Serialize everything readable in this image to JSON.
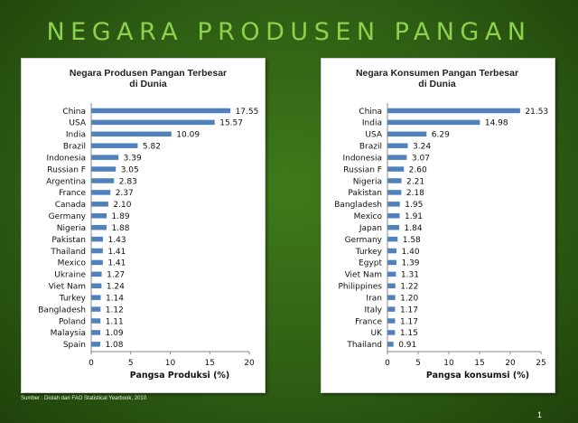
{
  "slide": {
    "title": "NEGARA PRODUSEN PANGAN",
    "source": "Sumber : Diolah dari FAO Statistical Yearbook, 2010",
    "page_number": "1"
  },
  "colors": {
    "background": "#2e5c13",
    "title_text": "#8fd14f",
    "bar": "#4f81bd",
    "panel": "#ffffff"
  },
  "chart_data": [
    {
      "type": "bar",
      "orientation": "horizontal",
      "title": "Negara Produsen  Pangan Terbesar di Dunia",
      "title_lines": [
        "Negara Produsen  Pangan Terbesar",
        "di Dunia"
      ],
      "xlabel": "Pangsa Produksi (%)",
      "ylabel": "",
      "xlim": [
        0,
        20
      ],
      "xticks": [
        "0",
        "5",
        "10",
        "15",
        "20"
      ],
      "grid": false,
      "legend": "none",
      "categories": [
        "China",
        "USA",
        "India",
        "Brazil",
        "Indonesia",
        "Russian F",
        "Argentina",
        "France",
        "Canada",
        "Germany",
        "Nigeria",
        "Pakistan",
        "Thailand",
        "Mexico",
        "Ukraine",
        "Viet Nam",
        "Turkey",
        "Bangladesh",
        "Poland",
        "Malaysia",
        "Spain"
      ],
      "values": [
        17.55,
        15.57,
        10.09,
        5.82,
        3.39,
        3.05,
        2.83,
        2.37,
        2.1,
        1.89,
        1.88,
        1.43,
        1.41,
        1.41,
        1.27,
        1.24,
        1.14,
        1.12,
        1.11,
        1.09,
        1.08
      ],
      "value_labels": [
        "17.55",
        "15.57",
        "10.09",
        "5.82",
        "3.39",
        "3.05",
        "2.83",
        "2.37",
        "2.10",
        "1.89",
        "1.88",
        "1.43",
        "1.41",
        "1.41",
        "1.27",
        "1.24",
        "1.14",
        "1.12",
        "1.11",
        "1.09",
        "1.08"
      ]
    },
    {
      "type": "bar",
      "orientation": "horizontal",
      "title": "Negara Konsumen  Pangan Terbesar di Dunia",
      "title_lines": [
        "Negara Konsumen  Pangan Terbesar",
        "di Dunia"
      ],
      "xlabel": "Pangsa konsumsi (%)",
      "ylabel": "",
      "xlim": [
        0,
        25
      ],
      "xticks": [
        "0",
        "5",
        "10",
        "15",
        "20",
        "25"
      ],
      "grid": false,
      "legend": "none",
      "categories": [
        "China",
        "India",
        "USA",
        "Brazil",
        "Indonesia",
        "Russian F",
        "Nigeria",
        "Pakistan",
        "Bangladesh",
        "Mexico",
        "Japan",
        "Germany",
        "Turkey",
        "Egypt",
        "Viet Nam",
        "Philippines",
        "Iran",
        "Italy",
        "France",
        "UK",
        "Thailand"
      ],
      "values": [
        21.53,
        14.98,
        6.29,
        3.24,
        3.07,
        2.6,
        2.21,
        2.18,
        1.95,
        1.91,
        1.84,
        1.58,
        1.4,
        1.39,
        1.31,
        1.22,
        1.2,
        1.17,
        1.17,
        1.15,
        0.91
      ],
      "value_labels": [
        "21.53",
        "14.98",
        "6.29",
        "3.24",
        "3.07",
        "2.60",
        "2.21",
        "2.18",
        "1.95",
        "1.91",
        "1.84",
        "1.58",
        "1.40",
        "1.39",
        "1.31",
        "1.22",
        "1.20",
        "1.17",
        "1.17",
        "1.15",
        "0.91"
      ]
    }
  ]
}
